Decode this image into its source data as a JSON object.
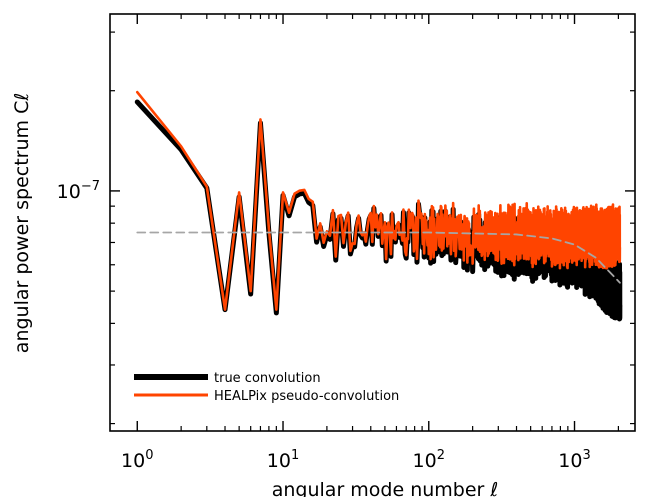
{
  "chart_data": {
    "type": "line",
    "xlabel": "angular mode number ℓ",
    "ylabel": "angular power spectrum Cℓ",
    "xscale": "log",
    "yscale": "log",
    "xlim": [
      0.65,
      2600
    ],
    "ylim": [
      1.9e-08,
      3.4e-07
    ],
    "x_major_ticks": [
      {
        "value": 1,
        "base": "10",
        "exp": "0"
      },
      {
        "value": 10,
        "base": "10",
        "exp": "1"
      },
      {
        "value": 100,
        "base": "10",
        "exp": "2"
      },
      {
        "value": 1000,
        "base": "10",
        "exp": "3"
      }
    ],
    "y_major_ticks": [
      {
        "value": 1e-07,
        "base": "10",
        "exp": "−7"
      }
    ],
    "y_minor_ticks": [
      2e-08,
      3e-08,
      4e-08,
      5e-08,
      6e-08,
      7e-08,
      8e-08,
      9e-08,
      2e-07,
      3e-07
    ],
    "grid": false,
    "legend_position": "bottom-left",
    "series": [
      {
        "name": "true convolution",
        "color": "#000000",
        "style": "solid-thick",
        "noise_from_l": 10,
        "noise_amplitude_dex": 0.1,
        "points": [
          [
            1,
            1.85e-07
          ],
          [
            2,
            1.33e-07
          ],
          [
            3,
            1.02e-07
          ],
          [
            4,
            4.4e-08
          ],
          [
            5,
            9.6e-08
          ],
          [
            6,
            4.9e-08
          ],
          [
            7,
            1.6e-07
          ],
          [
            8,
            7.5e-08
          ],
          [
            9,
            4.3e-08
          ],
          [
            10,
            9.7e-08
          ],
          [
            20,
            7.6e-08
          ],
          [
            50,
            7.5e-08
          ],
          [
            100,
            7.3e-08
          ],
          [
            200,
            7e-08
          ],
          [
            400,
            6.7e-08
          ],
          [
            700,
            6.6e-08
          ],
          [
            1000,
            6.3e-08
          ],
          [
            1400,
            5.8e-08
          ],
          [
            2048,
            4.9e-08
          ]
        ]
      },
      {
        "name": "HEALPix pseudo-convolution",
        "color": "#ff4400",
        "style": "solid",
        "noise_from_l": 10,
        "noise_amplitude_dex": 0.1,
        "points": [
          [
            1,
            1.98e-07
          ],
          [
            2,
            1.36e-07
          ],
          [
            3,
            1.03e-07
          ],
          [
            4,
            4.4e-08
          ],
          [
            5,
            9.9e-08
          ],
          [
            6,
            5e-08
          ],
          [
            7,
            1.64e-07
          ],
          [
            8,
            7.7e-08
          ],
          [
            9,
            4.4e-08
          ],
          [
            10,
            9.9e-08
          ],
          [
            20,
            7.8e-08
          ],
          [
            50,
            7.6e-08
          ],
          [
            100,
            7.5e-08
          ],
          [
            200,
            7.4e-08
          ],
          [
            400,
            7.4e-08
          ],
          [
            700,
            7.3e-08
          ],
          [
            1000,
            7.3e-08
          ],
          [
            1400,
            7.3e-08
          ],
          [
            2048,
            7.3e-08
          ]
        ]
      },
      {
        "name": "",
        "color": "#a6a6a6",
        "style": "dashed",
        "points": [
          [
            1,
            7.5e-08
          ],
          [
            100,
            7.5e-08
          ],
          [
            400,
            7.4e-08
          ],
          [
            700,
            7.2e-08
          ],
          [
            1000,
            6.9e-08
          ],
          [
            1400,
            6.3e-08
          ],
          [
            2048,
            5.3e-08
          ]
        ]
      }
    ]
  }
}
